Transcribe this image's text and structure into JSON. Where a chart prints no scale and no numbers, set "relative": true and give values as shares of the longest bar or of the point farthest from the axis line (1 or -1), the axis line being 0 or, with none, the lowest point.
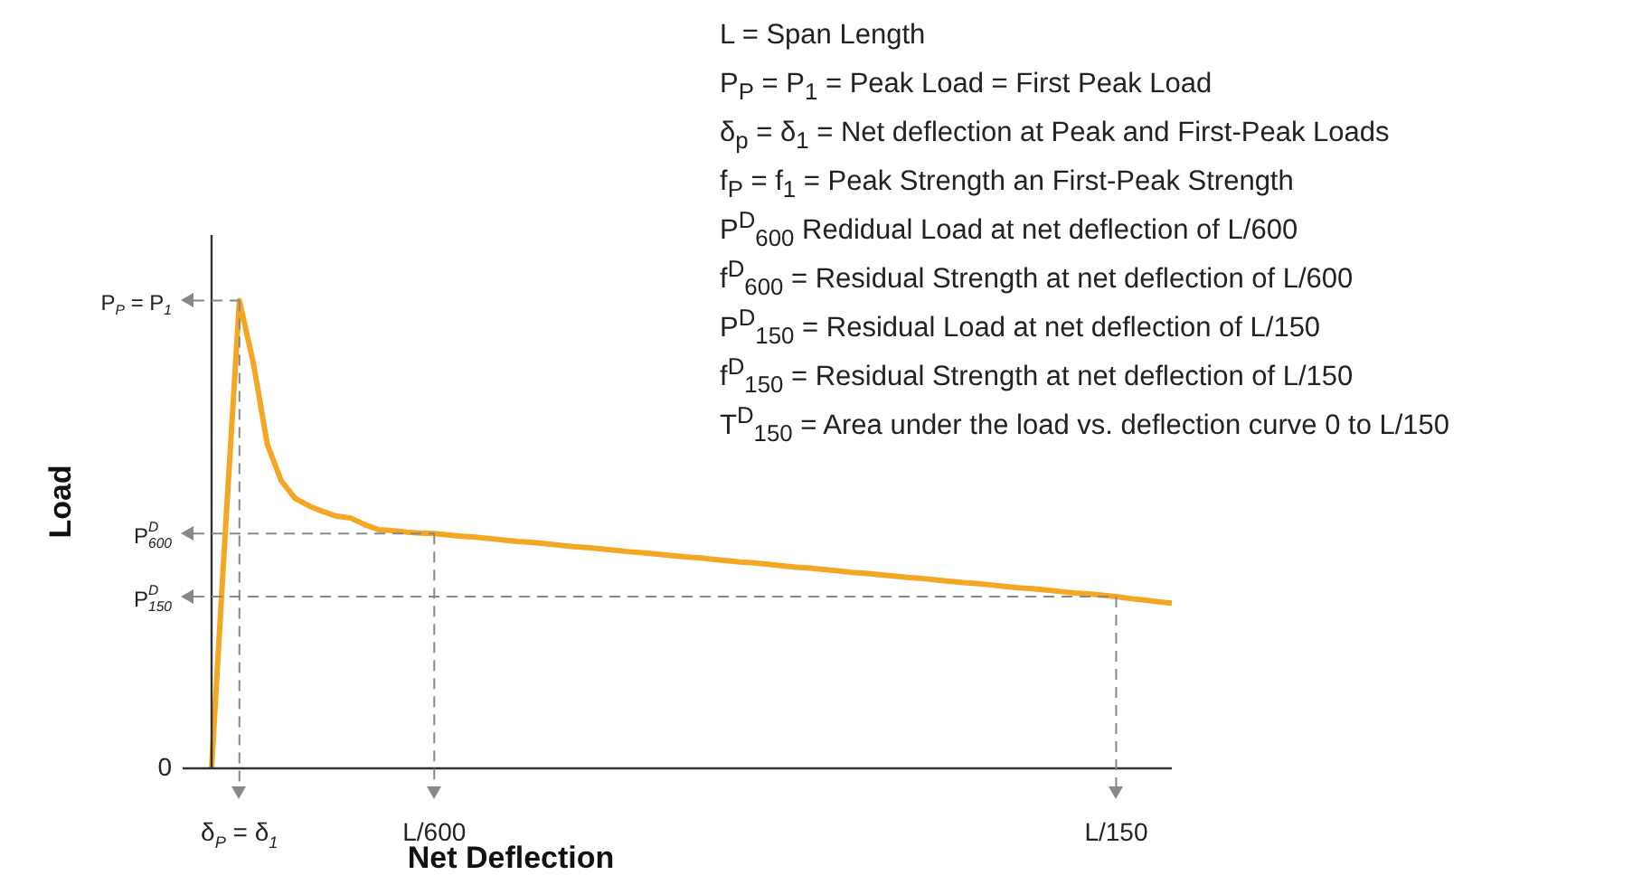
{
  "chart_data": {
    "type": "line",
    "relative": true,
    "xlabel": "Net Deflection",
    "ylabel": "Load",
    "categories": [
      null,
      null,
      "δ$_{P}$ = δ$_{1}$",
      null,
      null,
      null,
      null,
      null,
      null,
      null,
      null,
      null,
      null,
      null,
      null,
      null,
      "L/600",
      null,
      null,
      null,
      null,
      null,
      null,
      null,
      null,
      null,
      null,
      null,
      null,
      null,
      null,
      null,
      null,
      null,
      null,
      null,
      null,
      null,
      null,
      null,
      null,
      null,
      null,
      null,
      null,
      null,
      null,
      null,
      null,
      null,
      null,
      null,
      null,
      null,
      null,
      null,
      null,
      null,
      null,
      null,
      null,
      null,
      null,
      null,
      null,
      "L/150",
      null,
      null,
      null,
      null
    ],
    "series": [
      {
        "color": "#f5a623",
        "values": [
          0,
          0.513,
          1,
          0.867,
          0.693,
          0.615,
          0.577,
          0.561,
          0.549,
          0.539,
          0.535,
          0.521,
          0.51,
          0.508,
          0.505,
          0.503,
          0.502,
          0.499,
          0.496,
          0.494,
          0.491,
          0.488,
          0.485,
          0.483,
          0.48,
          0.477,
          0.474,
          0.472,
          0.469,
          0.466,
          0.463,
          0.461,
          0.458,
          0.455,
          0.452,
          0.45,
          0.447,
          0.444,
          0.441,
          0.439,
          0.436,
          0.433,
          0.43,
          0.428,
          0.425,
          0.422,
          0.419,
          0.417,
          0.414,
          0.411,
          0.408,
          0.406,
          0.403,
          0.4,
          0.397,
          0.395,
          0.392,
          0.389,
          0.386,
          0.384,
          0.381,
          0.378,
          0.375,
          0.373,
          0.37,
          0.367,
          0.363,
          0.36,
          0.356,
          0.353
        ]
      }
    ],
    "ref_lines": [
      {
        "axis": "y",
        "value": 1,
        "label": "P$_{P}$ = P$_{1}$",
        "color": "#888888",
        "line_style": "dashed"
      },
      {
        "axis": "y",
        "value": 0.502,
        "label": "P$^{D}$$_{600}$",
        "color": "#888888",
        "line_style": "dashed"
      },
      {
        "axis": "y",
        "value": 0.367,
        "label": "P$^{D}$$_{150}$",
        "color": "#888888",
        "line_style": "dashed"
      },
      {
        "axis": "x",
        "value": "δ$_{P}$ = δ$_{1}$",
        "color": "#888888",
        "line_style": "dashed"
      },
      {
        "axis": "x",
        "value": "L/600",
        "color": "#888888",
        "line_style": "dashed"
      },
      {
        "axis": "x",
        "value": "L/150",
        "color": "#888888",
        "line_style": "dashed"
      }
    ],
    "marker": "none",
    "line_style": "solid",
    "legend": false,
    "annotations": [
      "0",
      "L = Span Length",
      "P$_{P}$ = P$_{1}$ = Peak Load = First Peak Load",
      "δ$_{p}$ = δ$_{1}$ = Net deflection at Peak and First-Peak Loads",
      "f$_{P}$ = f$_{1}$ = Peak Strength an First-Peak Strength",
      "P$^{D}$$_{600}$ Redidual Load at net deflection of L/600",
      "f$^{D}$$_{600}$ = Residual Strength at net deflection of L/600",
      "P$^{D}$$_{150}$ = Residual Load at net deflection of L/150",
      "f$^{D}$$_{150}$ = Residual Strength at net deflection of L/150",
      "T$^{D}$$_{150}$ = Area under the load vs. deflection curve 0 to L/150"
    ]
  }
}
